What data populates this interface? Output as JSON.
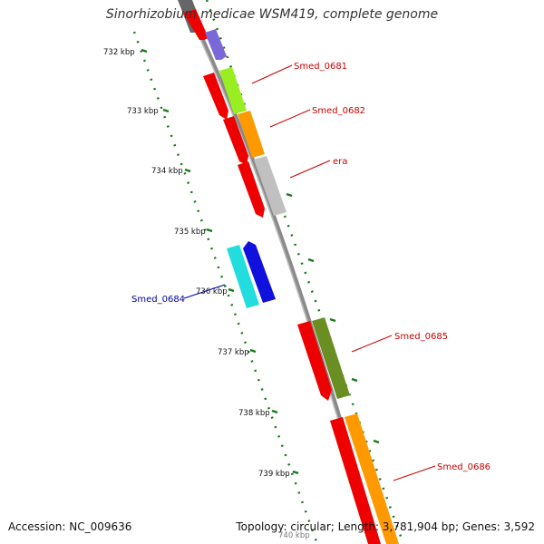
{
  "title": "Sinorhizobium medicae WSM419, complete genome",
  "footer": {
    "accession": "Accession: NC_009636",
    "summary": "Topology: circular; Length: 3,781,904 bp; Genes: 3,592"
  },
  "ruler": {
    "unit": "kbp",
    "ticks": [
      "732 kbp",
      "733 kbp",
      "734 kbp",
      "735 kbp",
      "736 kbp",
      "737 kbp",
      "738 kbp",
      "739 kbp",
      "740 kbp"
    ]
  },
  "gene_labels": [
    {
      "id": "smed0681",
      "text": "Smed_0681",
      "color": "#cc0000"
    },
    {
      "id": "smed0682",
      "text": "Smed_0682",
      "color": "#cc0000"
    },
    {
      "id": "era",
      "text": "era",
      "color": "#cc0000"
    },
    {
      "id": "smed0684",
      "text": "Smed_0684",
      "color": "#000099"
    },
    {
      "id": "smed0685",
      "text": "Smed_0685",
      "color": "#cc0000"
    },
    {
      "id": "smed0686",
      "text": "Smed_0686",
      "color": "#cc0000"
    }
  ],
  "colors": {
    "backbone": "#8a8a8a",
    "tick": "#1a7a1a",
    "cds": "#ee0000",
    "purple": "#7b68d8",
    "lime": "#99ee22",
    "orange": "#ff9900",
    "silver": "#c0c0c0",
    "cyan": "#22dddd",
    "blue": "#1111dd",
    "olive": "#6b8e23"
  }
}
